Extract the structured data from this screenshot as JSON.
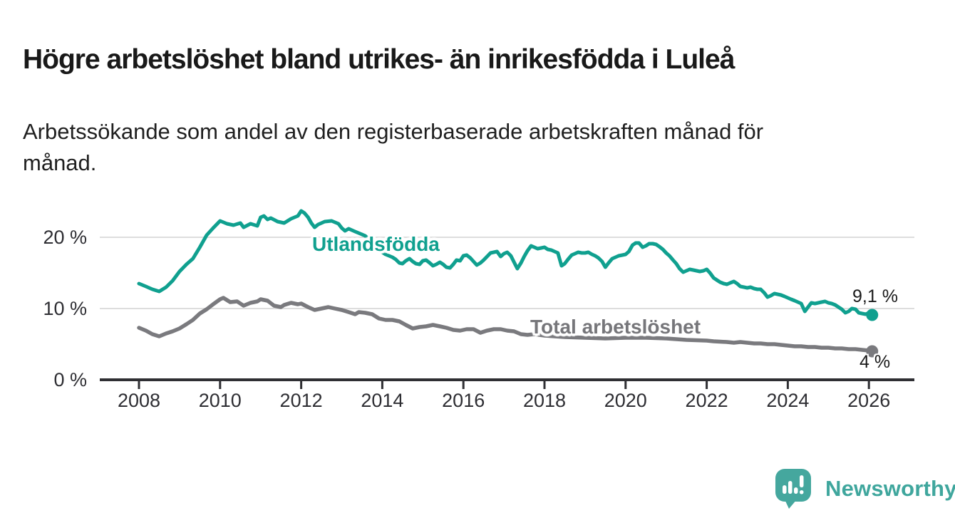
{
  "header": {
    "title": "Högre arbetslöshet bland utrikes- än inrikesfödda i Luleå",
    "subtitle_lines": [
      "Arbetssökande som andel av den registerbaserade arbetskraften månad för",
      "månad."
    ]
  },
  "footer": {
    "brand": "Newsworthy",
    "logo_icon": "speech-bubble-bar-chart-icon"
  },
  "colors": {
    "series_utlandsfodda": "#10a08f",
    "series_total": "#7a7a7e",
    "label_total_text": "#76767a",
    "grid": "#dddddd",
    "axis": "#2f2f33",
    "text": "#1a1a1a",
    "brand_teal": "#45a79e"
  },
  "chart_data": {
    "type": "line",
    "title": "Högre arbetslöshet bland utrikes- än inrikesfödda i Luleå",
    "xlabel": "",
    "ylabel": "",
    "unit": "%",
    "grid": "horizontal-only",
    "legend_position": "inline-labels-on-lines",
    "x_axis": {
      "range": [
        2007.1,
        2027.1
      ],
      "ticks": [
        2008,
        2010,
        2012,
        2014,
        2016,
        2018,
        2020,
        2022,
        2024,
        2026
      ],
      "tick_labels": [
        "2008",
        "2010",
        "2012",
        "2014",
        "2016",
        "2018",
        "2020",
        "2022",
        "2024",
        "2026"
      ]
    },
    "y_axis": {
      "range": [
        0,
        26
      ],
      "ticks": [
        0,
        10,
        20
      ],
      "tick_labels": [
        "0 %",
        "10 %",
        "20 %"
      ]
    },
    "series": [
      {
        "name": "Utlandsfödda",
        "color": "#10a08f",
        "end_label": "9,1 %",
        "end_value": 9.1,
        "points": [
          [
            2008.0,
            13.5
          ],
          [
            2008.17,
            13.1
          ],
          [
            2008.33,
            12.7
          ],
          [
            2008.5,
            12.4
          ],
          [
            2008.67,
            13.0
          ],
          [
            2008.83,
            13.9
          ],
          [
            2009.0,
            15.2
          ],
          [
            2009.17,
            16.2
          ],
          [
            2009.33,
            17.0
          ],
          [
            2009.5,
            18.6
          ],
          [
            2009.67,
            20.3
          ],
          [
            2009.83,
            21.3
          ],
          [
            2010.0,
            22.3
          ],
          [
            2010.17,
            21.9
          ],
          [
            2010.33,
            21.7
          ],
          [
            2010.5,
            22.0
          ],
          [
            2010.58,
            21.4
          ],
          [
            2010.75,
            21.9
          ],
          [
            2010.92,
            21.6
          ],
          [
            2011.0,
            22.8
          ],
          [
            2011.08,
            23.0
          ],
          [
            2011.17,
            22.5
          ],
          [
            2011.25,
            22.7
          ],
          [
            2011.42,
            22.2
          ],
          [
            2011.58,
            22.0
          ],
          [
            2011.75,
            22.6
          ],
          [
            2011.92,
            23.0
          ],
          [
            2012.0,
            23.7
          ],
          [
            2012.08,
            23.4
          ],
          [
            2012.17,
            22.8
          ],
          [
            2012.25,
            22.0
          ],
          [
            2012.33,
            21.4
          ],
          [
            2012.42,
            21.8
          ],
          [
            2012.5,
            22.0
          ],
          [
            2012.58,
            22.2
          ],
          [
            2012.75,
            22.3
          ],
          [
            2012.92,
            21.9
          ],
          [
            2013.0,
            21.3
          ],
          [
            2013.08,
            20.9
          ],
          [
            2013.17,
            21.2
          ],
          [
            2013.25,
            21.0
          ],
          [
            2013.33,
            20.8
          ],
          [
            2013.5,
            20.4
          ],
          [
            2013.58,
            20.2
          ],
          [
            2013.75,
            19.2
          ],
          [
            2013.92,
            18.2
          ],
          [
            2014.08,
            17.6
          ],
          [
            2014.25,
            17.2
          ],
          [
            2014.33,
            16.9
          ],
          [
            2014.42,
            16.4
          ],
          [
            2014.5,
            16.3
          ],
          [
            2014.58,
            16.7
          ],
          [
            2014.67,
            17.0
          ],
          [
            2014.75,
            16.6
          ],
          [
            2014.83,
            16.3
          ],
          [
            2014.92,
            16.2
          ],
          [
            2015.0,
            16.7
          ],
          [
            2015.08,
            16.8
          ],
          [
            2015.17,
            16.4
          ],
          [
            2015.25,
            16.0
          ],
          [
            2015.33,
            16.2
          ],
          [
            2015.42,
            16.5
          ],
          [
            2015.5,
            16.2
          ],
          [
            2015.58,
            15.8
          ],
          [
            2015.67,
            15.7
          ],
          [
            2015.75,
            16.2
          ],
          [
            2015.83,
            16.8
          ],
          [
            2015.92,
            16.7
          ],
          [
            2016.0,
            17.4
          ],
          [
            2016.08,
            17.5
          ],
          [
            2016.17,
            17.1
          ],
          [
            2016.33,
            16.1
          ],
          [
            2016.42,
            16.4
          ],
          [
            2016.5,
            16.8
          ],
          [
            2016.67,
            17.8
          ],
          [
            2016.83,
            18.0
          ],
          [
            2016.92,
            17.3
          ],
          [
            2017.0,
            17.7
          ],
          [
            2017.08,
            17.9
          ],
          [
            2017.17,
            17.4
          ],
          [
            2017.25,
            16.5
          ],
          [
            2017.33,
            15.6
          ],
          [
            2017.42,
            16.4
          ],
          [
            2017.5,
            17.3
          ],
          [
            2017.58,
            18.1
          ],
          [
            2017.67,
            18.8
          ],
          [
            2017.83,
            18.4
          ],
          [
            2017.92,
            18.5
          ],
          [
            2018.0,
            18.6
          ],
          [
            2018.08,
            18.3
          ],
          [
            2018.17,
            18.2
          ],
          [
            2018.25,
            18.0
          ],
          [
            2018.33,
            17.8
          ],
          [
            2018.42,
            16.0
          ],
          [
            2018.5,
            16.3
          ],
          [
            2018.58,
            16.9
          ],
          [
            2018.67,
            17.5
          ],
          [
            2018.75,
            17.7
          ],
          [
            2018.83,
            17.9
          ],
          [
            2018.92,
            17.8
          ],
          [
            2019.0,
            17.8
          ],
          [
            2019.08,
            17.9
          ],
          [
            2019.17,
            17.6
          ],
          [
            2019.25,
            17.4
          ],
          [
            2019.33,
            17.1
          ],
          [
            2019.42,
            16.6
          ],
          [
            2019.5,
            15.8
          ],
          [
            2019.58,
            16.4
          ],
          [
            2019.67,
            17.0
          ],
          [
            2019.75,
            17.2
          ],
          [
            2019.83,
            17.4
          ],
          [
            2019.92,
            17.5
          ],
          [
            2020.0,
            17.6
          ],
          [
            2020.08,
            18.0
          ],
          [
            2020.17,
            18.9
          ],
          [
            2020.25,
            19.2
          ],
          [
            2020.33,
            19.2
          ],
          [
            2020.42,
            18.6
          ],
          [
            2020.5,
            18.8
          ],
          [
            2020.58,
            19.1
          ],
          [
            2020.67,
            19.1
          ],
          [
            2020.75,
            19.0
          ],
          [
            2020.83,
            18.7
          ],
          [
            2020.92,
            18.3
          ],
          [
            2021.0,
            17.8
          ],
          [
            2021.08,
            17.4
          ],
          [
            2021.17,
            16.8
          ],
          [
            2021.25,
            16.3
          ],
          [
            2021.33,
            15.6
          ],
          [
            2021.42,
            15.1
          ],
          [
            2021.5,
            15.3
          ],
          [
            2021.58,
            15.5
          ],
          [
            2021.67,
            15.4
          ],
          [
            2021.75,
            15.3
          ],
          [
            2021.83,
            15.2
          ],
          [
            2021.92,
            15.3
          ],
          [
            2022.0,
            15.5
          ],
          [
            2022.08,
            15.0
          ],
          [
            2022.17,
            14.3
          ],
          [
            2022.25,
            14.0
          ],
          [
            2022.33,
            13.7
          ],
          [
            2022.42,
            13.5
          ],
          [
            2022.5,
            13.4
          ],
          [
            2022.58,
            13.6
          ],
          [
            2022.67,
            13.8
          ],
          [
            2022.75,
            13.5
          ],
          [
            2022.83,
            13.1
          ],
          [
            2022.92,
            13.0
          ],
          [
            2023.0,
            12.9
          ],
          [
            2023.08,
            13.0
          ],
          [
            2023.17,
            12.8
          ],
          [
            2023.25,
            12.7
          ],
          [
            2023.33,
            12.7
          ],
          [
            2023.42,
            12.2
          ],
          [
            2023.5,
            11.6
          ],
          [
            2023.58,
            11.8
          ],
          [
            2023.67,
            12.1
          ],
          [
            2023.75,
            12.0
          ],
          [
            2023.83,
            11.9
          ],
          [
            2023.92,
            11.7
          ],
          [
            2024.0,
            11.5
          ],
          [
            2024.08,
            11.3
          ],
          [
            2024.17,
            11.1
          ],
          [
            2024.25,
            10.9
          ],
          [
            2024.33,
            10.7
          ],
          [
            2024.42,
            9.6
          ],
          [
            2024.5,
            10.2
          ],
          [
            2024.58,
            10.8
          ],
          [
            2024.67,
            10.7
          ],
          [
            2024.75,
            10.8
          ],
          [
            2024.83,
            10.9
          ],
          [
            2024.92,
            11.0
          ],
          [
            2025.0,
            10.8
          ],
          [
            2025.08,
            10.7
          ],
          [
            2025.17,
            10.5
          ],
          [
            2025.25,
            10.2
          ],
          [
            2025.33,
            9.9
          ],
          [
            2025.42,
            9.4
          ],
          [
            2025.5,
            9.6
          ],
          [
            2025.58,
            10.0
          ],
          [
            2025.67,
            9.9
          ],
          [
            2025.75,
            9.4
          ],
          [
            2025.83,
            9.3
          ],
          [
            2025.92,
            9.2
          ],
          [
            2026.0,
            9.4
          ],
          [
            2026.08,
            9.1
          ]
        ]
      },
      {
        "name": "Total arbetslöshet",
        "color": "#7a7a7e",
        "end_label": "4 %",
        "end_value": 4.0,
        "points": [
          [
            2008.0,
            7.3
          ],
          [
            2008.17,
            6.9
          ],
          [
            2008.33,
            6.4
          ],
          [
            2008.5,
            6.1
          ],
          [
            2008.67,
            6.5
          ],
          [
            2008.83,
            6.8
          ],
          [
            2009.0,
            7.2
          ],
          [
            2009.17,
            7.8
          ],
          [
            2009.33,
            8.4
          ],
          [
            2009.5,
            9.3
          ],
          [
            2009.67,
            9.9
          ],
          [
            2009.83,
            10.6
          ],
          [
            2010.0,
            11.3
          ],
          [
            2010.08,
            11.5
          ],
          [
            2010.25,
            10.9
          ],
          [
            2010.42,
            11.0
          ],
          [
            2010.58,
            10.4
          ],
          [
            2010.75,
            10.8
          ],
          [
            2010.92,
            11.0
          ],
          [
            2011.0,
            11.3
          ],
          [
            2011.17,
            11.1
          ],
          [
            2011.33,
            10.4
          ],
          [
            2011.5,
            10.2
          ],
          [
            2011.58,
            10.5
          ],
          [
            2011.75,
            10.8
          ],
          [
            2011.92,
            10.6
          ],
          [
            2012.0,
            10.7
          ],
          [
            2012.17,
            10.2
          ],
          [
            2012.33,
            9.8
          ],
          [
            2012.5,
            10.0
          ],
          [
            2012.67,
            10.2
          ],
          [
            2012.83,
            10.0
          ],
          [
            2013.0,
            9.8
          ],
          [
            2013.17,
            9.5
          ],
          [
            2013.33,
            9.2
          ],
          [
            2013.42,
            9.5
          ],
          [
            2013.58,
            9.4
          ],
          [
            2013.75,
            9.2
          ],
          [
            2013.92,
            8.6
          ],
          [
            2014.08,
            8.4
          ],
          [
            2014.25,
            8.4
          ],
          [
            2014.42,
            8.2
          ],
          [
            2014.58,
            7.7
          ],
          [
            2014.75,
            7.2
          ],
          [
            2014.92,
            7.4
          ],
          [
            2015.08,
            7.5
          ],
          [
            2015.25,
            7.7
          ],
          [
            2015.42,
            7.5
          ],
          [
            2015.58,
            7.3
          ],
          [
            2015.75,
            7.0
          ],
          [
            2015.92,
            6.9
          ],
          [
            2016.08,
            7.1
          ],
          [
            2016.25,
            7.1
          ],
          [
            2016.42,
            6.6
          ],
          [
            2016.58,
            6.9
          ],
          [
            2016.75,
            7.1
          ],
          [
            2016.92,
            7.1
          ],
          [
            2017.08,
            6.9
          ],
          [
            2017.25,
            6.8
          ],
          [
            2017.42,
            6.4
          ],
          [
            2017.58,
            6.3
          ],
          [
            2017.75,
            6.4
          ],
          [
            2018.0,
            6.2
          ],
          [
            2018.5,
            6.0
          ],
          [
            2019.0,
            5.9
          ],
          [
            2019.5,
            5.8
          ],
          [
            2020.0,
            5.9
          ],
          [
            2020.5,
            5.9
          ],
          [
            2021.0,
            5.8
          ],
          [
            2021.5,
            5.6
          ],
          [
            2022.0,
            5.5
          ],
          [
            2022.17,
            5.4
          ],
          [
            2022.33,
            5.35
          ],
          [
            2022.5,
            5.3
          ],
          [
            2022.67,
            5.2
          ],
          [
            2022.83,
            5.3
          ],
          [
            2023.0,
            5.2
          ],
          [
            2023.17,
            5.1
          ],
          [
            2023.33,
            5.1
          ],
          [
            2023.5,
            5.0
          ],
          [
            2023.67,
            5.0
          ],
          [
            2023.83,
            4.9
          ],
          [
            2024.0,
            4.8
          ],
          [
            2024.17,
            4.7
          ],
          [
            2024.33,
            4.7
          ],
          [
            2024.5,
            4.6
          ],
          [
            2024.67,
            4.6
          ],
          [
            2024.83,
            4.5
          ],
          [
            2025.0,
            4.5
          ],
          [
            2025.17,
            4.4
          ],
          [
            2025.33,
            4.4
          ],
          [
            2025.5,
            4.3
          ],
          [
            2025.67,
            4.3
          ],
          [
            2025.83,
            4.2
          ],
          [
            2026.0,
            4.1
          ],
          [
            2026.08,
            4.0
          ]
        ]
      }
    ]
  }
}
